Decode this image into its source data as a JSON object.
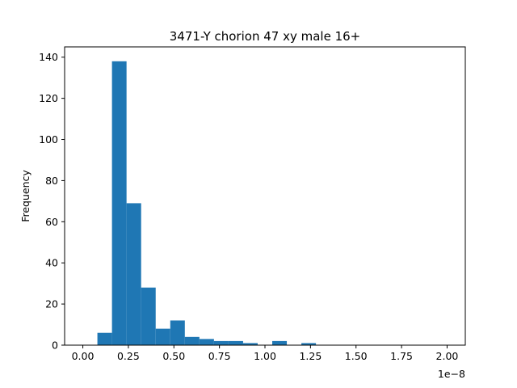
{
  "chart_data": {
    "type": "bar",
    "title": "3471-Y chorion 47 xy male 16+",
    "xlabel": "",
    "ylabel": "Frequency",
    "x_offset_label": "1e−8",
    "xlim": [
      -0.1,
      2.1
    ],
    "ylim": [
      0,
      145
    ],
    "xticks": [
      0.0,
      0.25,
      0.5,
      0.75,
      1.0,
      1.25,
      1.5,
      1.75,
      2.0
    ],
    "xtick_labels": [
      "0.00",
      "0.25",
      "0.50",
      "0.75",
      "1.00",
      "1.25",
      "1.50",
      "1.75",
      "2.00"
    ],
    "yticks": [
      0,
      20,
      40,
      60,
      80,
      100,
      120,
      140
    ],
    "ytick_labels": [
      "0",
      "20",
      "40",
      "60",
      "80",
      "100",
      "120",
      "140"
    ],
    "bar_color": "#1f77b4",
    "bins": [
      {
        "x0": 0.08,
        "x1": 0.16,
        "value": 6
      },
      {
        "x0": 0.16,
        "x1": 0.24,
        "value": 138
      },
      {
        "x0": 0.24,
        "x1": 0.32,
        "value": 69
      },
      {
        "x0": 0.32,
        "x1": 0.4,
        "value": 28
      },
      {
        "x0": 0.4,
        "x1": 0.48,
        "value": 8
      },
      {
        "x0": 0.48,
        "x1": 0.56,
        "value": 12
      },
      {
        "x0": 0.56,
        "x1": 0.64,
        "value": 4
      },
      {
        "x0": 0.64,
        "x1": 0.72,
        "value": 3
      },
      {
        "x0": 0.72,
        "x1": 0.8,
        "value": 2
      },
      {
        "x0": 0.8,
        "x1": 0.88,
        "value": 2
      },
      {
        "x0": 0.88,
        "x1": 0.96,
        "value": 1
      },
      {
        "x0": 0.96,
        "x1": 1.04,
        "value": 0
      },
      {
        "x0": 1.04,
        "x1": 1.12,
        "value": 2
      },
      {
        "x0": 1.12,
        "x1": 1.2,
        "value": 0
      },
      {
        "x0": 1.2,
        "x1": 1.28,
        "value": 1
      }
    ],
    "grid": false,
    "legend": "none"
  }
}
